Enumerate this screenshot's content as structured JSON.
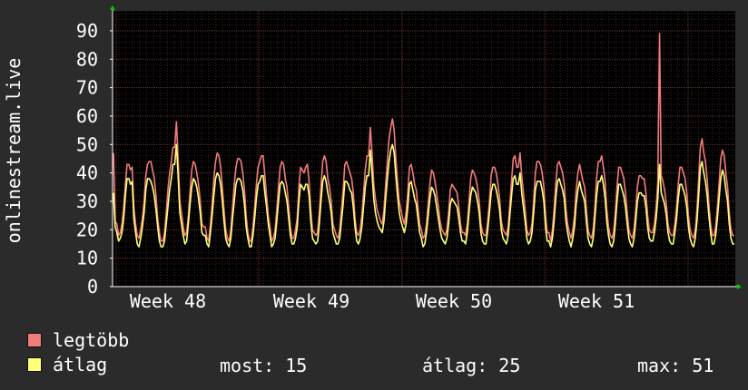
{
  "chart_data": {
    "type": "line",
    "ylabel": "onlinestream.live",
    "yticks": [
      0,
      10,
      20,
      30,
      40,
      50,
      60,
      70,
      80,
      90
    ],
    "ylim": [
      0,
      97
    ],
    "xlabels": [
      "Week 48",
      "Week 49",
      "Week 50",
      "Week 51"
    ],
    "grid": true,
    "colors": {
      "background": "#2b2b2b",
      "plot": "#000000",
      "grid_minor": "#3a1f1f",
      "grid_major": "#6b3434",
      "axis": "#ffffff",
      "arrow": "#00cc00"
    },
    "series": [
      {
        "name": "legtöbb",
        "color": "#f07c7c",
        "values": [
          47,
          23,
          22,
          18,
          19,
          22,
          28,
          36,
          43,
          43,
          41,
          42,
          28,
          22,
          18,
          17,
          20,
          24,
          30,
          39,
          43,
          44,
          44,
          41,
          38,
          32,
          24,
          19,
          16,
          16,
          19,
          26,
          34,
          40,
          44,
          49,
          49,
          58,
          45,
          30,
          26,
          21,
          18,
          19,
          25,
          33,
          41,
          44,
          43,
          40,
          36,
          30,
          22,
          21,
          21,
          17,
          16,
          22,
          29,
          38,
          44,
          47,
          46,
          42,
          35,
          27,
          20,
          17,
          16,
          20,
          28,
          36,
          42,
          45,
          45,
          44,
          40,
          34,
          25,
          19,
          16,
          16,
          21,
          28,
          36,
          42,
          44,
          46,
          46,
          39,
          32,
          25,
          21,
          16,
          17,
          20,
          27,
          35,
          42,
          44,
          43,
          38,
          35,
          28,
          21,
          17,
          17,
          20,
          24,
          35,
          42,
          41,
          40,
          42,
          43,
          37,
          27,
          20,
          19,
          18,
          19,
          26,
          35,
          44,
          46,
          44,
          38,
          35,
          30,
          22,
          20,
          18,
          17,
          20,
          27,
          34,
          43,
          44,
          42,
          40,
          38,
          33,
          24,
          19,
          18,
          20,
          25,
          33,
          41,
          46,
          46,
          56,
          47,
          36,
          31,
          27,
          25,
          23,
          22,
          27,
          36,
          44,
          52,
          56,
          59,
          55,
          45,
          37,
          30,
          27,
          24,
          22,
          26,
          33,
          42,
          43,
          40,
          36,
          34,
          28,
          22,
          20,
          17,
          18,
          22,
          29,
          36,
          41,
          40,
          37,
          33,
          28,
          23,
          20,
          19,
          18,
          20,
          26,
          34,
          36,
          35,
          34,
          33,
          28,
          22,
          19,
          19,
          18,
          22,
          30,
          38,
          41,
          40,
          38,
          35,
          30,
          22,
          19,
          18,
          18,
          23,
          30,
          39,
          42,
          42,
          40,
          36,
          31,
          23,
          20,
          19,
          18,
          21,
          29,
          37,
          45,
          46,
          42,
          42,
          47,
          39,
          33,
          27,
          20,
          18,
          19,
          22,
          30,
          40,
          44,
          44,
          43,
          40,
          35,
          25,
          19,
          19,
          16,
          20,
          27,
          36,
          43,
          44,
          42,
          40,
          36,
          27,
          22,
          19,
          17,
          20,
          25,
          34,
          40,
          43,
          40,
          37,
          35,
          27,
          20,
          18,
          17,
          20,
          28,
          38,
          44,
          44,
          46,
          42,
          37,
          27,
          21,
          18,
          17,
          19,
          26,
          35,
          42,
          42,
          40,
          38,
          33,
          26,
          20,
          18,
          17,
          20,
          27,
          35,
          39,
          39,
          38,
          38,
          33,
          25,
          20,
          19,
          19,
          22,
          28,
          37,
          89,
          39,
          37,
          34,
          29,
          22,
          19,
          18,
          18,
          22,
          28,
          36,
          42,
          42,
          40,
          38,
          33,
          25,
          20,
          18,
          17,
          20,
          27,
          38,
          49,
          52,
          47,
          44,
          38,
          29,
          22,
          18,
          18,
          21,
          28,
          36,
          45,
          48,
          46,
          40,
          35,
          26,
          20,
          18,
          18
        ],
        "labelled": false
      },
      {
        "name": "átlag",
        "color": "#ffff7a",
        "values": [
          33,
          21,
          19,
          16,
          17,
          19,
          24,
          32,
          38,
          38,
          36,
          37,
          24,
          19,
          15,
          14,
          17,
          21,
          26,
          34,
          38,
          38,
          37,
          35,
          32,
          27,
          21,
          16,
          14,
          14,
          16,
          22,
          28,
          34,
          38,
          43,
          43,
          50,
          39,
          26,
          22,
          18,
          15,
          16,
          22,
          29,
          35,
          38,
          37,
          35,
          31,
          26,
          19,
          18,
          18,
          15,
          14,
          19,
          25,
          32,
          38,
          40,
          39,
          36,
          30,
          23,
          17,
          15,
          14,
          17,
          24,
          30,
          36,
          38,
          38,
          37,
          34,
          29,
          21,
          17,
          14,
          14,
          18,
          24,
          31,
          36,
          37,
          39,
          39,
          33,
          28,
          22,
          18,
          14,
          15,
          17,
          23,
          30,
          36,
          37,
          36,
          33,
          30,
          24,
          18,
          15,
          15,
          17,
          21,
          30,
          36,
          35,
          34,
          36,
          36,
          32,
          23,
          17,
          16,
          15,
          16,
          22,
          30,
          37,
          39,
          37,
          33,
          30,
          26,
          19,
          17,
          15,
          15,
          17,
          23,
          29,
          37,
          37,
          36,
          34,
          33,
          28,
          21,
          16,
          15,
          17,
          21,
          28,
          35,
          39,
          39,
          48,
          40,
          31,
          26,
          23,
          21,
          20,
          19,
          23,
          31,
          38,
          44,
          48,
          50,
          47,
          39,
          32,
          26,
          23,
          21,
          19,
          22,
          28,
          36,
          37,
          34,
          31,
          29,
          24,
          19,
          17,
          14,
          15,
          19,
          25,
          31,
          35,
          34,
          32,
          28,
          24,
          20,
          17,
          16,
          15,
          17,
          22,
          29,
          31,
          30,
          29,
          28,
          24,
          19,
          16,
          16,
          15,
          19,
          26,
          32,
          35,
          34,
          33,
          30,
          26,
          19,
          16,
          15,
          15,
          20,
          26,
          33,
          36,
          36,
          34,
          31,
          27,
          20,
          17,
          16,
          15,
          18,
          25,
          32,
          38,
          39,
          36,
          36,
          40,
          33,
          28,
          23,
          17,
          15,
          16,
          19,
          26,
          34,
          37,
          37,
          37,
          34,
          30,
          21,
          16,
          16,
          14,
          17,
          23,
          31,
          37,
          38,
          36,
          34,
          31,
          23,
          19,
          16,
          14,
          17,
          21,
          29,
          34,
          37,
          34,
          32,
          30,
          23,
          17,
          15,
          14,
          17,
          24,
          32,
          37,
          37,
          39,
          36,
          31,
          23,
          18,
          15,
          14,
          16,
          22,
          30,
          36,
          36,
          34,
          32,
          28,
          22,
          17,
          15,
          14,
          17,
          23,
          30,
          33,
          33,
          32,
          32,
          28,
          21,
          17,
          16,
          16,
          19,
          24,
          31,
          43,
          33,
          31,
          29,
          25,
          19,
          16,
          15,
          15,
          19,
          24,
          31,
          36,
          36,
          34,
          32,
          28,
          21,
          17,
          15,
          14,
          17,
          23,
          32,
          42,
          44,
          40,
          37,
          32,
          25,
          19,
          15,
          15,
          18,
          24,
          31,
          38,
          41,
          39,
          34,
          30,
          22,
          17,
          15,
          15
        ],
        "labelled": true
      }
    ]
  },
  "legend": {
    "max_label": "legtöbb",
    "avg_label": "átlag",
    "stats": [
      {
        "label": "most:",
        "value": "15"
      },
      {
        "label": "átlag:",
        "value": "25"
      },
      {
        "label": "max:",
        "value": "51"
      }
    ]
  }
}
